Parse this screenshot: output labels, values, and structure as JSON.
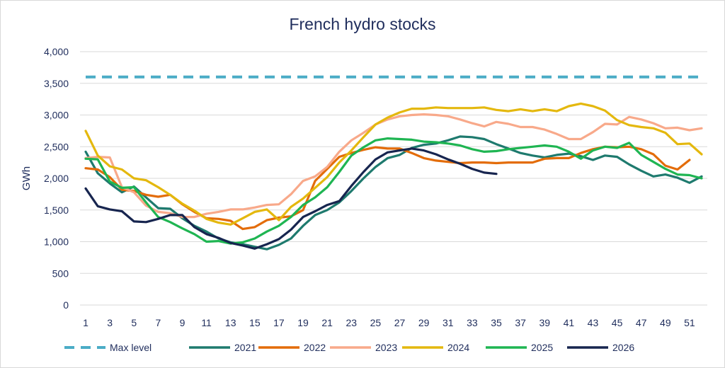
{
  "chart_data": {
    "type": "line",
    "title": "French hydro stocks",
    "xlabel": "",
    "ylabel": "GWh",
    "ylim": [
      0,
      4000
    ],
    "yticks": [
      0,
      500,
      1000,
      1500,
      2000,
      2500,
      3000,
      3500,
      4000
    ],
    "ytick_labels": [
      "0",
      "500",
      "1,000",
      "1,500",
      "2,000",
      "2,500",
      "3,000",
      "3,500",
      "4,000"
    ],
    "xlim": [
      1,
      52
    ],
    "xticks": [
      1,
      3,
      5,
      7,
      9,
      11,
      13,
      15,
      17,
      19,
      21,
      23,
      25,
      27,
      29,
      31,
      33,
      35,
      37,
      39,
      41,
      43,
      45,
      47,
      49,
      51
    ],
    "grid": "horizontal",
    "legend_position": "bottom",
    "reference_line": {
      "name": "Max level",
      "value": 3600,
      "color": "#4bacc6",
      "style": "dashed"
    },
    "series": [
      {
        "name": "2021",
        "color": "#1e7a6e",
        "values": [
          2420,
          2080,
          1920,
          1780,
          1870,
          1700,
          1530,
          1520,
          1370,
          1250,
          1160,
          1050,
          990,
          960,
          920,
          880,
          950,
          1050,
          1250,
          1420,
          1500,
          1620,
          1800,
          2000,
          2180,
          2320,
          2370,
          2480,
          2530,
          2550,
          2600,
          2660,
          2650,
          2620,
          2540,
          2470,
          2400,
          2360,
          2330,
          2370,
          2390,
          2350,
          2290,
          2360,
          2340,
          2220,
          2120,
          2030,
          2060,
          2010,
          1930,
          2030
        ]
      },
      {
        "name": "2022",
        "color": "#e36c09",
        "values": [
          2160,
          2140,
          2020,
          1820,
          1800,
          1740,
          1710,
          1740,
          1590,
          1470,
          1370,
          1360,
          1330,
          1200,
          1230,
          1340,
          1380,
          1400,
          1500,
          1960,
          2150,
          2340,
          2400,
          2450,
          2490,
          2470,
          2470,
          2400,
          2320,
          2280,
          2260,
          2240,
          2250,
          2250,
          2240,
          2250,
          2250,
          2250,
          2310,
          2320,
          2320,
          2400,
          2460,
          2500,
          2490,
          2500,
          2460,
          2380,
          2200,
          2140,
          2290,
          null
        ]
      },
      {
        "name": "2023",
        "color": "#f8a98a",
        "values": [
          2320,
          2340,
          2330,
          1860,
          1780,
          1570,
          1470,
          1450,
          1390,
          1390,
          1440,
          1470,
          1510,
          1510,
          1540,
          1580,
          1590,
          1750,
          1960,
          2030,
          2180,
          2420,
          2600,
          2720,
          2850,
          2930,
          2980,
          3000,
          3010,
          3000,
          2980,
          2930,
          2870,
          2820,
          2890,
          2860,
          2810,
          2810,
          2770,
          2700,
          2620,
          2620,
          2730,
          2860,
          2850,
          2970,
          2930,
          2870,
          2790,
          2800,
          2760,
          2790
        ]
      },
      {
        "name": "2024",
        "color": "#e4b80e",
        "values": [
          2750,
          2360,
          2190,
          2140,
          2000,
          1970,
          1860,
          1740,
          1600,
          1490,
          1360,
          1300,
          1270,
          1370,
          1470,
          1510,
          1340,
          1550,
          1680,
          1850,
          2020,
          2250,
          2440,
          2650,
          2850,
          2960,
          3040,
          3100,
          3100,
          3120,
          3110,
          3110,
          3110,
          3120,
          3080,
          3060,
          3090,
          3060,
          3090,
          3060,
          3140,
          3180,
          3140,
          3070,
          2920,
          2840,
          2810,
          2790,
          2720,
          2540,
          2550,
          2380
        ]
      },
      {
        "name": "2025",
        "color": "#1fb552",
        "values": [
          2310,
          2300,
          1950,
          1850,
          1860,
          1620,
          1390,
          1310,
          1210,
          1120,
          1000,
          1010,
          970,
          990,
          1050,
          1160,
          1250,
          1390,
          1580,
          1700,
          1860,
          2100,
          2360,
          2490,
          2600,
          2630,
          2620,
          2610,
          2580,
          2570,
          2550,
          2520,
          2460,
          2420,
          2430,
          2460,
          2480,
          2500,
          2520,
          2500,
          2420,
          2310,
          2440,
          2500,
          2480,
          2560,
          2370,
          2260,
          2150,
          2060,
          2050,
          2000
        ]
      },
      {
        "name": "2026",
        "color": "#17254f",
        "values": [
          1840,
          1560,
          1510,
          1480,
          1320,
          1310,
          1360,
          1420,
          1420,
          1230,
          1120,
          1060,
          980,
          940,
          890,
          960,
          1040,
          1190,
          1390,
          1480,
          1580,
          1640,
          1880,
          2100,
          2300,
          2410,
          2440,
          2470,
          2440,
          2380,
          2300,
          2230,
          2150,
          2090,
          2070,
          null,
          null,
          null,
          null,
          null,
          null,
          null,
          null,
          null,
          null,
          null,
          null,
          null,
          null,
          null,
          null,
          null
        ]
      }
    ]
  }
}
